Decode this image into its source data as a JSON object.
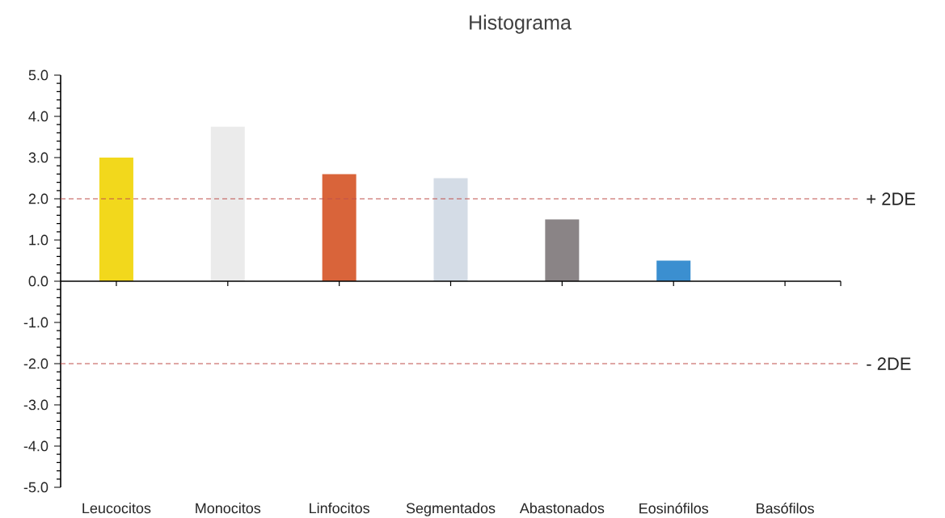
{
  "chart_data": {
    "type": "bar",
    "title": "Histograma",
    "categories": [
      "Leucocitos",
      "Monocitos",
      "Linfocitos",
      "Segmentados",
      "Abastonados",
      "Eosinófilos",
      "Basófilos"
    ],
    "values": [
      3.0,
      3.75,
      2.6,
      2.5,
      1.5,
      0.5,
      0
    ],
    "colors": [
      "#f2d81c",
      "#ebebeb",
      "#d9643a",
      "#d4dce6",
      "#8a8486",
      "#3b8fd0",
      "#7f7f7f"
    ],
    "ylim": [
      -5,
      5
    ],
    "yticks": [
      {
        "value": -5,
        "label": "-5.0"
      },
      {
        "value": -4,
        "label": "-4.0"
      },
      {
        "value": -3,
        "label": "-3.0"
      },
      {
        "value": -2,
        "label": "-2.0"
      },
      {
        "value": -1,
        "label": "-1.0"
      },
      {
        "value": 0,
        "label": "0.0"
      },
      {
        "value": 1,
        "label": "1.0"
      },
      {
        "value": 2,
        "label": "2.0"
      },
      {
        "value": 3,
        "label": "3.0"
      },
      {
        "value": 4,
        "label": "4.0"
      },
      {
        "value": 5,
        "label": "5.0"
      }
    ],
    "ref_lines": [
      {
        "axis": "y",
        "value": 2,
        "label": "+ 2DE",
        "color": "#c0504d",
        "line_style": "dashed"
      },
      {
        "axis": "y",
        "value": -2,
        "label": "- 2DE",
        "color": "#c0504d",
        "line_style": "dashed"
      }
    ],
    "grid": false
  }
}
